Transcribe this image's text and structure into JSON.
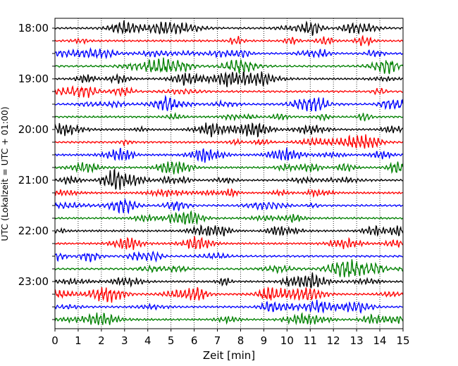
{
  "chart_data": {
    "type": "line",
    "title": "",
    "xlabel": "Zeit  [min]",
    "ylabel": "UTC (Lokalzeit = UTC + 01:00)",
    "xlim": [
      0,
      15
    ],
    "x_ticks": [
      "0",
      "1",
      "2",
      "3",
      "4",
      "5",
      "6",
      "7",
      "8",
      "9",
      "10",
      "11",
      "12",
      "13",
      "14",
      "15"
    ],
    "y_tick_labels": [
      "18:00",
      "19:00",
      "20:00",
      "21:00",
      "22:00",
      "23:00"
    ],
    "trace_start": "18:00",
    "trace_interval_minutes": 15,
    "trace_count": 24,
    "trace_colors": [
      "#000000",
      "#ff0000",
      "#0000ff",
      "#008000"
    ],
    "grid": "vertical dotted lines at each minute",
    "series": [
      {
        "start_utc": "18:00",
        "color": "#000000"
      },
      {
        "start_utc": "18:15",
        "color": "#ff0000"
      },
      {
        "start_utc": "18:30",
        "color": "#0000ff"
      },
      {
        "start_utc": "18:45",
        "color": "#008000"
      },
      {
        "start_utc": "19:00",
        "color": "#000000"
      },
      {
        "start_utc": "19:15",
        "color": "#ff0000"
      },
      {
        "start_utc": "19:30",
        "color": "#0000ff"
      },
      {
        "start_utc": "19:45",
        "color": "#008000"
      },
      {
        "start_utc": "20:00",
        "color": "#000000"
      },
      {
        "start_utc": "20:15",
        "color": "#ff0000"
      },
      {
        "start_utc": "20:30",
        "color": "#0000ff"
      },
      {
        "start_utc": "20:45",
        "color": "#008000"
      },
      {
        "start_utc": "21:00",
        "color": "#000000"
      },
      {
        "start_utc": "21:15",
        "color": "#ff0000"
      },
      {
        "start_utc": "21:30",
        "color": "#0000ff"
      },
      {
        "start_utc": "21:45",
        "color": "#008000"
      },
      {
        "start_utc": "22:00",
        "color": "#000000"
      },
      {
        "start_utc": "22:15",
        "color": "#ff0000"
      },
      {
        "start_utc": "22:30",
        "color": "#0000ff"
      },
      {
        "start_utc": "22:45",
        "color": "#008000"
      },
      {
        "start_utc": "23:00",
        "color": "#000000"
      },
      {
        "start_utc": "23:15",
        "color": "#ff0000"
      },
      {
        "start_utc": "23:30",
        "color": "#0000ff"
      },
      {
        "start_utc": "23:45",
        "color": "#008000"
      }
    ]
  }
}
